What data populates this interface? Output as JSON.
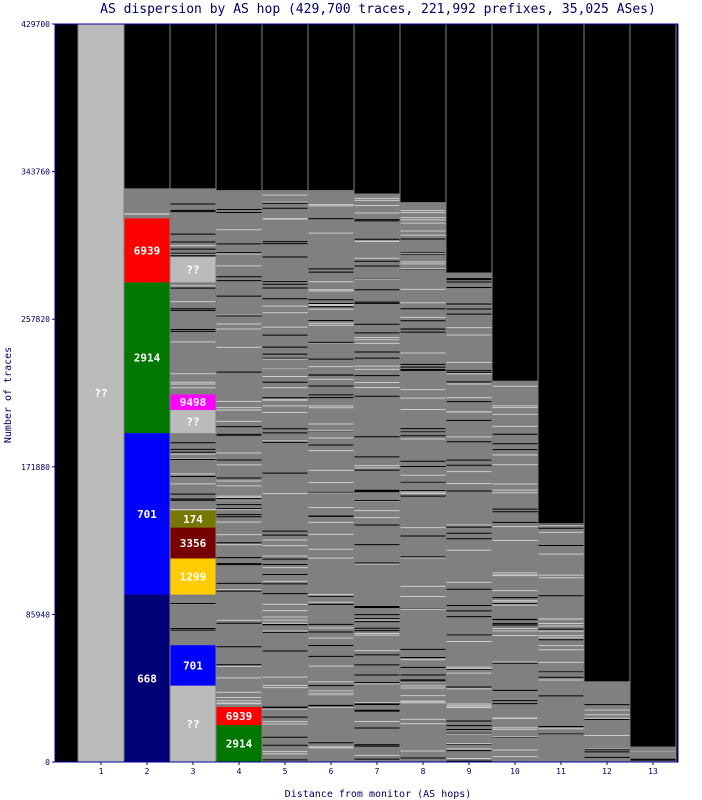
{
  "chart_data": {
    "type": "bar",
    "title": "AS dispersion by AS hop (429,700 traces, 221,992 prefixes, 35,025 ASes)",
    "xlabel": "Distance from monitor (AS hops)",
    "ylabel": "Number of traces",
    "ylim": [
      0,
      429700
    ],
    "yticks": [
      "0",
      "85940",
      "171880",
      "257820",
      "343760",
      "429700"
    ],
    "categories": [
      "1",
      "2",
      "3",
      "4",
      "5",
      "6",
      "7",
      "8",
      "9",
      "10",
      "11",
      "12",
      "13"
    ],
    "stack_total_per_hop": [
      429700,
      334000,
      334000,
      333000,
      333000,
      333000,
      331000,
      326000,
      285000,
      222000,
      139000,
      47000,
      9000
    ],
    "labeled_segments": [
      {
        "hop": 1,
        "label": "??",
        "from": 0,
        "to": 429700,
        "color": "#bbbbbb"
      },
      {
        "hop": 2,
        "label": "668",
        "from": 0,
        "to": 97500,
        "color": "#000077"
      },
      {
        "hop": 2,
        "label": "701",
        "from": 97500,
        "to": 191500,
        "color": "#0000ff"
      },
      {
        "hop": 2,
        "label": "2914",
        "from": 191500,
        "to": 279300,
        "color": "#007700"
      },
      {
        "hop": 2,
        "label": "6939",
        "from": 279300,
        "to": 316500,
        "color": "#ff0000"
      },
      {
        "hop": 3,
        "label": "??",
        "from": 0,
        "to": 44500,
        "color": "#bbbbbb"
      },
      {
        "hop": 3,
        "label": "701",
        "from": 44500,
        "to": 68000,
        "color": "#0000ff"
      },
      {
        "hop": 3,
        "label": "1299",
        "from": 97500,
        "to": 118500,
        "color": "#ffcc00"
      },
      {
        "hop": 3,
        "label": "3356",
        "from": 118500,
        "to": 136500,
        "color": "#770000"
      },
      {
        "hop": 3,
        "label": "174",
        "from": 136500,
        "to": 146500,
        "color": "#777700"
      },
      {
        "hop": 3,
        "label": "??",
        "from": 191500,
        "to": 205000,
        "color": "#bbbbbb"
      },
      {
        "hop": 3,
        "label": "9498",
        "from": 205000,
        "to": 214000,
        "color": "#ff00ff"
      },
      {
        "hop": 3,
        "label": "??",
        "from": 279300,
        "to": 294000,
        "color": "#bbbbbb"
      },
      {
        "hop": 4,
        "label": "2914",
        "from": 0,
        "to": 21500,
        "color": "#007700"
      },
      {
        "hop": 4,
        "label": "6939",
        "from": 21500,
        "to": 32000,
        "color": "#ff0000"
      }
    ]
  }
}
